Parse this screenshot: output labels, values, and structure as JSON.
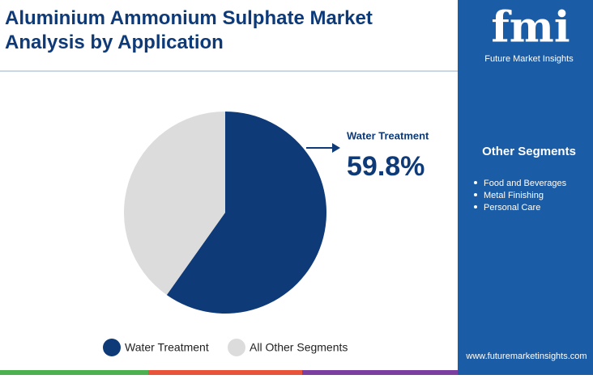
{
  "chart_data": {
    "type": "pie",
    "title": "Aluminium Ammonium Sulphate Market Analysis by Application",
    "categories": [
      "Water Treatment",
      "All Other Segments"
    ],
    "values": [
      59.8,
      40.2
    ],
    "value_labels": [
      "59.8%",
      null
    ],
    "colors": [
      "#0e3a78",
      "#dcdcdc"
    ]
  },
  "brand": {
    "logo": "fmi",
    "name": "Future Market Insights",
    "website": "www.futuremarketinsights.com"
  },
  "sidebar": {
    "heading": "Other Segments",
    "items": [
      "Food and Beverages",
      "Metal Finishing",
      "Personal Care"
    ]
  }
}
